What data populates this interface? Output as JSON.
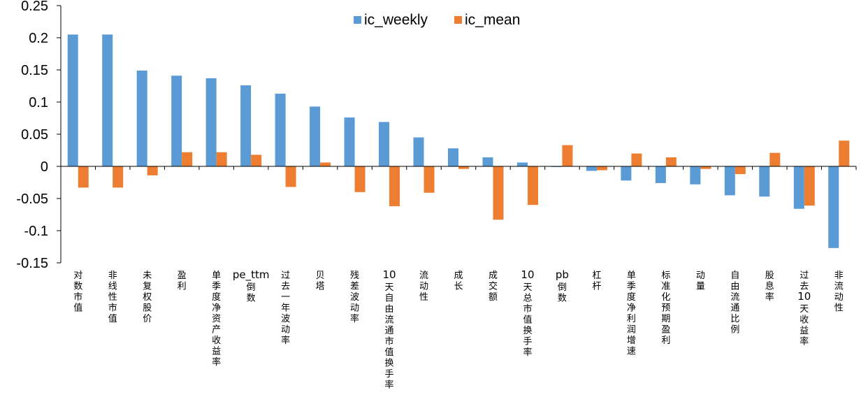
{
  "chart_data": {
    "type": "bar",
    "title": "",
    "xlabel": "",
    "ylabel": "",
    "ylim": [
      -0.15,
      0.25
    ],
    "y_ticks": [
      0.25,
      0.2,
      0.15,
      0.1,
      0.05,
      0,
      -0.05,
      -0.1,
      -0.15
    ],
    "y_tick_labels": [
      "0.25",
      "0.2",
      "0.15",
      "0.1",
      "0.05",
      "0",
      "-0.05",
      "-0.1",
      "-0.15"
    ],
    "legend_position": "top-center",
    "categories": [
      "对数市值",
      "非线性市值",
      "未复权股价",
      "盈利",
      "单季度净资产收益率",
      "pe_ttm倒数",
      "过去一年波动率",
      "贝塔",
      "残差波动率",
      "10天自由流通市值换手率",
      "流动性",
      "成长",
      "成交额",
      "10天总市值换手率",
      "pb倒数",
      "杠杆",
      "单季度净利润增速",
      "标准化预期盈利",
      "动量",
      "自由流通比例",
      "股息率",
      "过去10天收益率",
      "非流动性"
    ],
    "series": [
      {
        "name": "ic_weekly",
        "color": "#5B9BD5",
        "values": [
          0.205,
          0.205,
          0.149,
          0.141,
          0.137,
          0.126,
          0.113,
          0.093,
          0.076,
          0.069,
          0.045,
          0.028,
          0.014,
          0.006,
          -0.001,
          -0.007,
          -0.022,
          -0.026,
          -0.028,
          -0.045,
          -0.047,
          -0.066,
          -0.127
        ]
      },
      {
        "name": "ic_mean",
        "color": "#ED7D31",
        "values": [
          -0.033,
          -0.033,
          -0.014,
          0.022,
          0.022,
          0.018,
          -0.032,
          0.006,
          -0.04,
          -0.062,
          -0.041,
          -0.004,
          -0.083,
          -0.06,
          0.033,
          -0.006,
          0.02,
          0.014,
          -0.004,
          -0.012,
          0.021,
          -0.061,
          0.04
        ]
      }
    ]
  }
}
